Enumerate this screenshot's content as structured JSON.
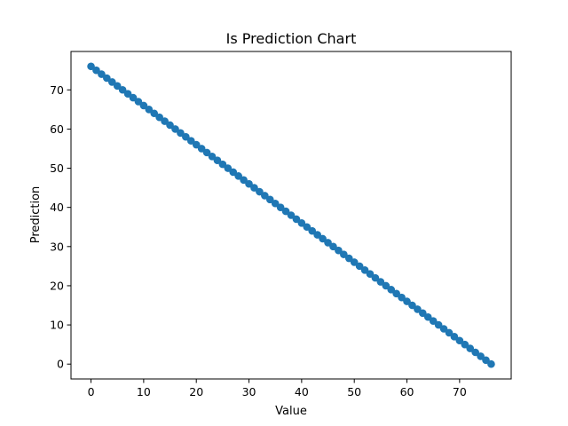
{
  "chart_data": {
    "type": "scatter",
    "title": "Is Prediction Chart",
    "xlabel": "Value",
    "ylabel": "Prediction",
    "xlim": [
      -3.8,
      79.8
    ],
    "ylim": [
      -3.8,
      79.8
    ],
    "xticks": [
      0,
      10,
      20,
      30,
      40,
      50,
      60,
      70
    ],
    "yticks": [
      0,
      10,
      20,
      30,
      40,
      50,
      60,
      70
    ],
    "grid": false,
    "marker_color": "#1f77b4",
    "line_color": "#1f77b4",
    "series": [
      {
        "x": [
          0,
          1,
          2,
          3,
          4,
          5,
          6,
          7,
          8,
          9,
          10,
          11,
          12,
          13,
          14,
          15,
          16,
          17,
          18,
          19,
          20,
          21,
          22,
          23,
          24,
          25,
          26,
          27,
          28,
          29,
          30,
          31,
          32,
          33,
          34,
          35,
          36,
          37,
          38,
          39,
          40,
          41,
          42,
          43,
          44,
          45,
          46,
          47,
          48,
          49,
          50,
          51,
          52,
          53,
          54,
          55,
          56,
          57,
          58,
          59,
          60,
          61,
          62,
          63,
          64,
          65,
          66,
          67,
          68,
          69,
          70,
          71,
          72,
          73,
          74,
          75,
          76
        ],
        "y": [
          76,
          75,
          74,
          73,
          72,
          71,
          70,
          69,
          68,
          67,
          66,
          65,
          64,
          63,
          62,
          61,
          60,
          59,
          58,
          57,
          56,
          55,
          54,
          53,
          52,
          51,
          50,
          49,
          48,
          47,
          46,
          45,
          44,
          43,
          42,
          41,
          40,
          39,
          38,
          37,
          36,
          35,
          34,
          33,
          32,
          31,
          30,
          29,
          28,
          27,
          26,
          25,
          24,
          23,
          22,
          21,
          20,
          19,
          18,
          17,
          16,
          15,
          14,
          13,
          12,
          11,
          10,
          9,
          8,
          7,
          6,
          5,
          4,
          3,
          2,
          1,
          0
        ]
      }
    ]
  }
}
